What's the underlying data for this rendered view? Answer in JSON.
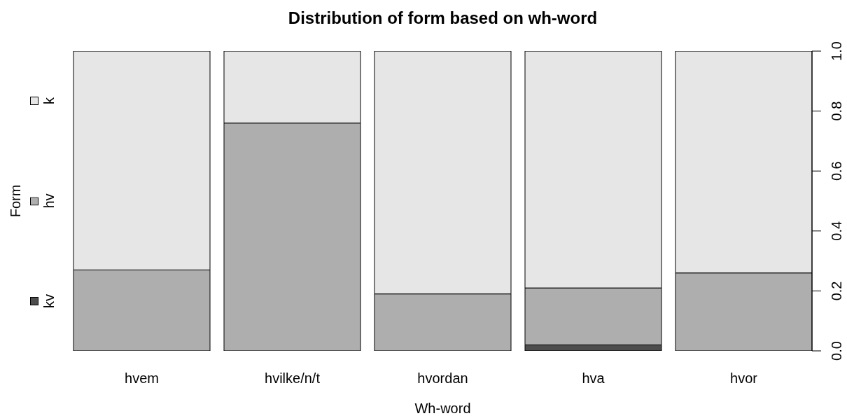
{
  "chart_data": {
    "type": "bar",
    "stacked": true,
    "title": "Distribution of form based on wh-word",
    "xlabel": "Wh-word",
    "ylabel": "Form",
    "categories": [
      "hvem",
      "hvilke/n/t",
      "hvordan",
      "hva",
      "hvor"
    ],
    "series": [
      {
        "name": "kv",
        "color": "#4d4d4d",
        "values": [
          0,
          0,
          0,
          0.02,
          0
        ]
      },
      {
        "name": "hv",
        "color": "#aeaeae",
        "values": [
          0.27,
          0.76,
          0.19,
          0.19,
          0.26
        ]
      },
      {
        "name": "k",
        "color": "#e6e6e6",
        "values": [
          0.73,
          0.24,
          0.81,
          0.79,
          0.74
        ]
      }
    ],
    "ylim": [
      0,
      1
    ],
    "yticks": [
      {
        "value": 0,
        "label": "0.0"
      },
      0.2,
      0.4,
      0.6,
      0.8,
      {
        "value": 1,
        "label": "1.0"
      }
    ],
    "legend": "left"
  }
}
